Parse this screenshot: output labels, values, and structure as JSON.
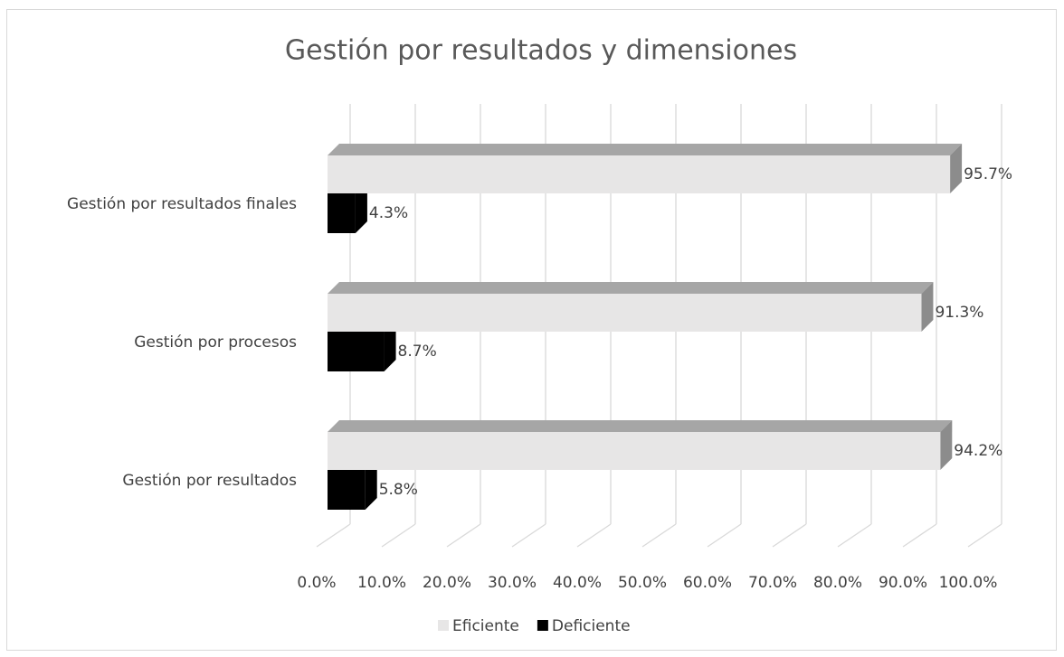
{
  "chart_data": {
    "type": "bar3d_horizontal",
    "title": "Gestión por resultados y dimensiones",
    "categories": [
      "Gestión por resultados finales",
      "Gestión por procesos",
      "Gestión por resultados"
    ],
    "series": [
      {
        "name": "Eficiente",
        "color": "#e7e6e6",
        "values": [
          95.7,
          91.3,
          94.2
        ],
        "value_labels": [
          "95.7%",
          "91.3%",
          "94.2%"
        ]
      },
      {
        "name": "Deficiente",
        "color": "#000000",
        "values": [
          4.3,
          8.7,
          5.8
        ],
        "value_labels": [
          "4.3%",
          "8.7%",
          "5.8%"
        ]
      }
    ],
    "xlim": [
      0,
      100
    ],
    "xticks": [
      {
        "value": 0,
        "label": "0.0%"
      },
      {
        "value": 10,
        "label": "10.0%"
      },
      {
        "value": 20,
        "label": "20.0%"
      },
      {
        "value": 30,
        "label": "30.0%"
      },
      {
        "value": 40,
        "label": "40.0%"
      },
      {
        "value": 50,
        "label": "50.0%"
      },
      {
        "value": 60,
        "label": "60.0%"
      },
      {
        "value": 70,
        "label": "70.0%"
      },
      {
        "value": 80,
        "label": "80.0%"
      },
      {
        "value": 90,
        "label": "90.0%"
      },
      {
        "value": 100,
        "label": "100.0%"
      }
    ],
    "grid": true,
    "legend": "bottom"
  }
}
